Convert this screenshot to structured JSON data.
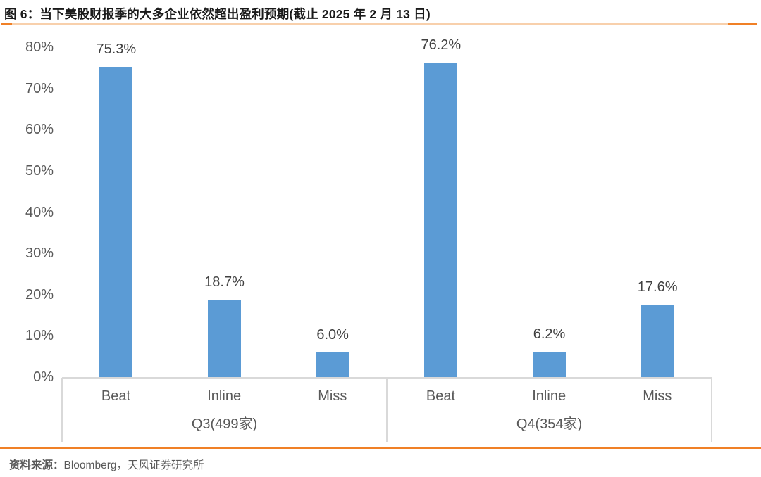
{
  "title": "图 6：当下美股财报季的大多企业依然超出盈利预期(截止 2025 年 2 月 13 日)",
  "source": {
    "label": "资料来源：",
    "text": "Bloomberg，天风证券研究所"
  },
  "colors": {
    "bar": "#5B9BD5",
    "accent_dark": "#F08026",
    "accent_light": "#F8D0AC",
    "axis_line": "#D9D9D9",
    "tick_text": "#595959",
    "data_label_text": "#404040"
  },
  "chart_data": {
    "type": "bar",
    "title": "当下美股财报季的大多企业依然超出盈利预期(截止 2025 年 2 月 13 日)",
    "xlabel": "",
    "ylabel": "",
    "ylim": [
      0,
      80
    ],
    "y_ticks": [
      "0%",
      "10%",
      "20%",
      "30%",
      "40%",
      "50%",
      "60%",
      "70%",
      "80%"
    ],
    "grid": false,
    "legend": "none",
    "bar_color": "#5B9BD5",
    "groups": [
      {
        "label": "Q3(499家)",
        "categories": [
          "Beat",
          "Inline",
          "Miss"
        ],
        "values": [
          75.3,
          18.7,
          6.0
        ],
        "data_labels": [
          "75.3%",
          "18.7%",
          "6.0%"
        ]
      },
      {
        "label": "Q4(354家)",
        "categories": [
          "Beat",
          "Inline",
          "Miss"
        ],
        "values": [
          76.2,
          6.2,
          17.6
        ],
        "data_labels": [
          "76.2%",
          "6.2%",
          "17.6%"
        ]
      }
    ]
  }
}
